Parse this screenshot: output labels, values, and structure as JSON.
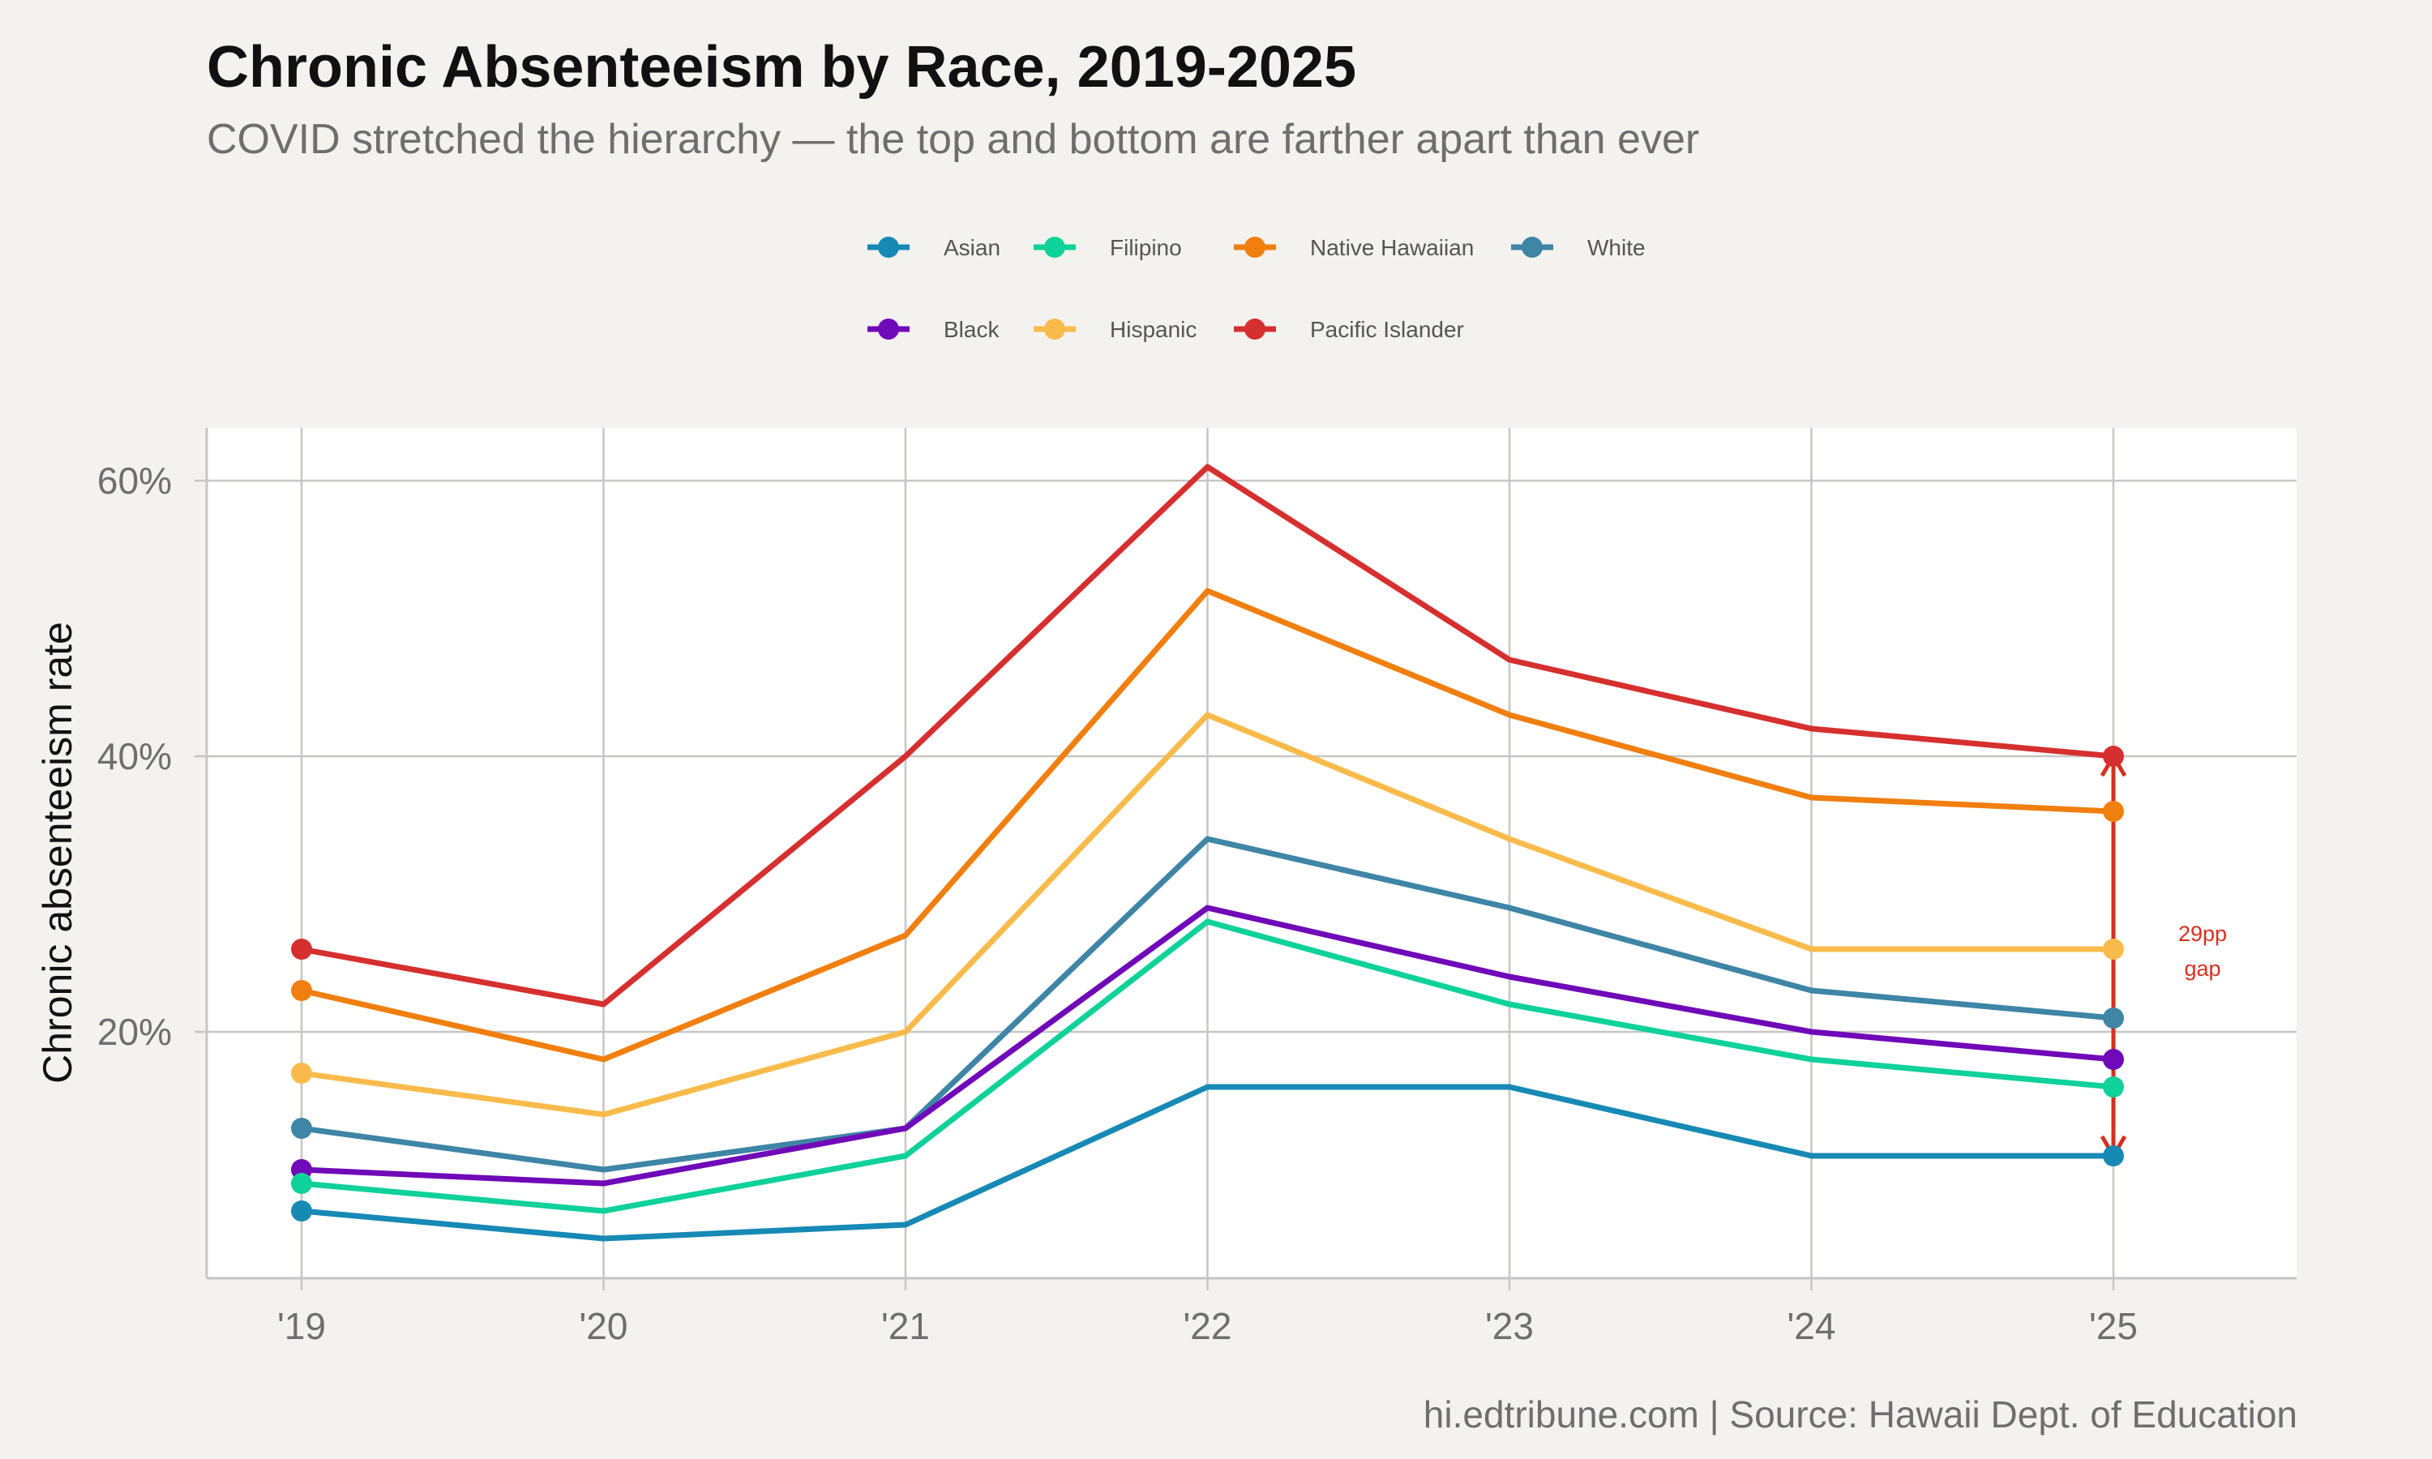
{
  "caption": "hi.edtribune.com | Source: Hawaii Dept. of Education",
  "colors": {
    "background": "#f4f2ee",
    "panel": "#ffffff",
    "grid": "#c8c6c1",
    "annotation": "#d7301f"
  },
  "chart_data": {
    "type": "line",
    "title": "Chronic Absenteeism by Race, 2019-2025",
    "subtitle": "COVID stretched the hierarchy — the top and bottom are farther apart than ever",
    "xlabel": "",
    "ylabel": "Chronic absenteeism rate",
    "x": [
      "'19",
      "'20",
      "'21",
      "'22",
      "'23",
      "'24",
      "'25"
    ],
    "ylim": [
      2,
      64
    ],
    "yticks": [
      20,
      40,
      60
    ],
    "ytick_labels": [
      "20%",
      "40%",
      "60%"
    ],
    "grid": true,
    "legend_position": "top",
    "legend_order": [
      "Asian",
      "Filipino",
      "Native Hawaiian",
      "White",
      "Black",
      "Hispanic",
      "Pacific Islander"
    ],
    "series": [
      {
        "name": "Pacific Islander",
        "color": "#d62f2f",
        "values": [
          26,
          22,
          40,
          61,
          47,
          42,
          40
        ]
      },
      {
        "name": "Native Hawaiian",
        "color": "#f07f0f",
        "values": [
          23,
          18,
          27,
          52,
          43,
          37,
          36
        ]
      },
      {
        "name": "Hispanic",
        "color": "#f8bb4b",
        "values": [
          17,
          14,
          20,
          43,
          34,
          26,
          26
        ]
      },
      {
        "name": "White",
        "color": "#3e85a6",
        "values": [
          13,
          10,
          13,
          34,
          29,
          23,
          21
        ]
      },
      {
        "name": "Black",
        "color": "#7009b8",
        "values": [
          10,
          9,
          13,
          29,
          24,
          20,
          18
        ]
      },
      {
        "name": "Filipino",
        "color": "#0fd19a",
        "values": [
          9,
          7,
          11,
          28,
          22,
          18,
          16
        ]
      },
      {
        "name": "Asian",
        "color": "#1789b5",
        "values": [
          7,
          5,
          6,
          16,
          16,
          11,
          11
        ]
      }
    ],
    "annotations": [
      {
        "text_line1": "29pp",
        "text_line2": "gap",
        "x": "'25",
        "y_from": 11,
        "y_to": 40
      }
    ]
  }
}
